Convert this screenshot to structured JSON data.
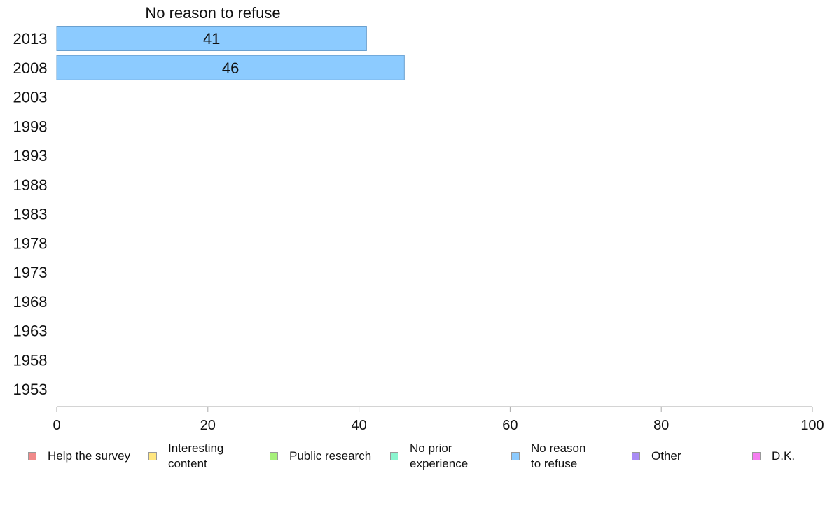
{
  "chart_data": {
    "type": "bar",
    "orientation": "horizontal",
    "title": "No reason to refuse",
    "categories": [
      "2013",
      "2008",
      "2003",
      "1998",
      "1993",
      "1988",
      "1983",
      "1978",
      "1973",
      "1968",
      "1963",
      "1958",
      "1953"
    ],
    "series": [
      {
        "name": "No reason to refuse",
        "values": [
          41,
          46,
          null,
          null,
          null,
          null,
          null,
          null,
          null,
          null,
          null,
          null,
          null
        ],
        "color": "#8ccbff"
      }
    ],
    "xlim": [
      0,
      100
    ],
    "xticks": [
      0,
      20,
      40,
      60,
      80,
      100
    ],
    "grid": false,
    "legend_position": "bottom",
    "legend": [
      {
        "label": "Help the survey",
        "color": "#f08a8a"
      },
      {
        "label": "Interesting\ncontent",
        "color": "#ffe680"
      },
      {
        "label": "Public research",
        "color": "#a6f07a"
      },
      {
        "label": "No prior\nexperience",
        "color": "#8af5cf"
      },
      {
        "label": "No reason\nto refuse",
        "color": "#8ccbff"
      },
      {
        "label": "Other",
        "color": "#a98cf5"
      },
      {
        "label": "D.K.",
        "color": "#f57ef0"
      }
    ]
  }
}
